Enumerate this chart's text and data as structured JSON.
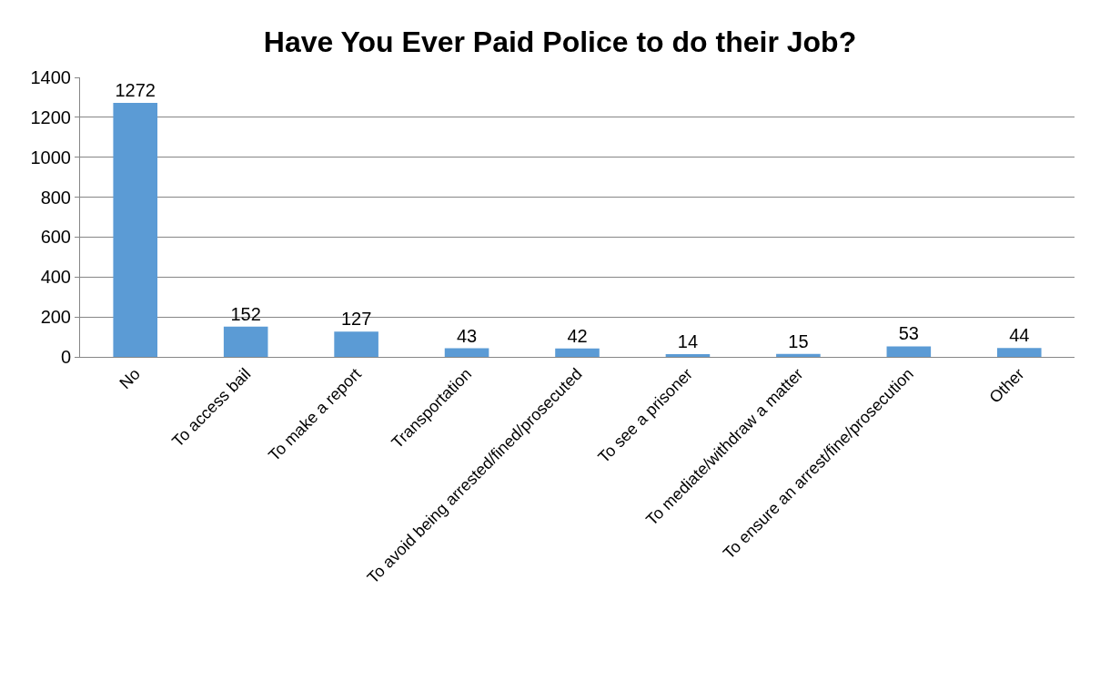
{
  "chart_data": {
    "type": "bar",
    "title": "Have You Ever Paid Police to do their Job?",
    "categories": [
      "No",
      "To access bail",
      "To make a report",
      "Transportation",
      "To avoid being arrested/fined/prosecuted",
      "To see a prisoner",
      "To mediate/withdraw a matter",
      "To ensure an arrest/fine/prosecution",
      "Other"
    ],
    "values": [
      1272,
      152,
      127,
      43,
      42,
      14,
      15,
      53,
      44
    ],
    "color": "#5b9bd5",
    "ylim": [
      0,
      1400
    ],
    "yticks": [
      0,
      200,
      400,
      600,
      800,
      1000,
      1200,
      1400
    ],
    "grid": "y",
    "data_labels": true
  }
}
